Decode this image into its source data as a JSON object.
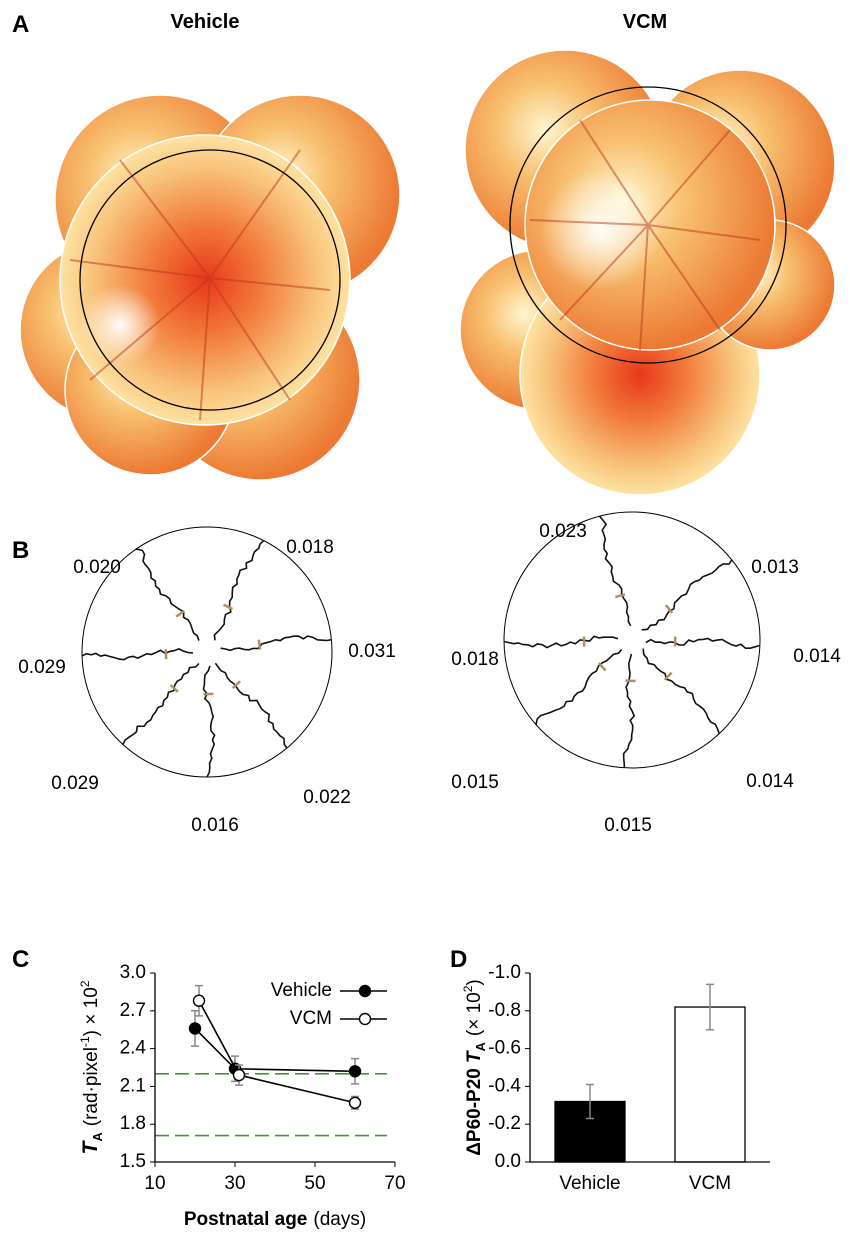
{
  "figure": {
    "panel_a": {
      "label": "A",
      "groups": [
        "Vehicle",
        "VCM"
      ]
    },
    "panel_b": {
      "label": "B",
      "groups": [
        {
          "labels": [
            "0.020",
            "0.018",
            "0.031",
            "0.022",
            "0.016",
            "0.029",
            "0.029"
          ]
        },
        {
          "labels": [
            "0.023",
            "0.013",
            "0.014",
            "0.014",
            "0.015",
            "0.015",
            "0.018"
          ]
        }
      ]
    }
  },
  "chart_data": [
    {
      "type": "line",
      "label": "C",
      "xlabel": {
        "bold": "Postnatal age",
        "normal": "(days)"
      },
      "ylabel": {
        "symbol": "T",
        "subscript": "A",
        "unit": "(rad·pixel",
        "exponent": "-1",
        "suffix": ") × 10",
        "suffix_exponent": "2"
      },
      "xlim": [
        10,
        70
      ],
      "xticks": [
        10,
        30,
        50,
        70
      ],
      "ylim": [
        1.5,
        3.0
      ],
      "yticks": [
        1.5,
        1.8,
        2.1,
        2.4,
        2.7,
        {
          "value": 3.0,
          "label": "3.0"
        }
      ],
      "legend": "upper right",
      "series": [
        {
          "name": "Vehicle",
          "color": "#000000",
          "marker_fill": "#000000",
          "x": [
            20,
            30,
            60
          ],
          "values": [
            2.56,
            2.24,
            2.22
          ],
          "errors": [
            0.14,
            0.1,
            0.1
          ]
        },
        {
          "name": "VCM",
          "color": "#000000",
          "marker_fill": "#ffffff",
          "x": [
            21,
            31,
            60
          ],
          "values": [
            2.78,
            2.19,
            1.97
          ],
          "errors": [
            0.12,
            0.08,
            0.05
          ]
        }
      ],
      "reference_lines": [
        {
          "value": 2.2,
          "color": "#3a9a2a"
        },
        {
          "value": 1.71,
          "color": "#3a9a2a"
        }
      ]
    },
    {
      "type": "bar",
      "label": "D",
      "ylabel": {
        "prefix": "ΔP60-P20",
        "symbol": "T",
        "subscript": "A",
        "unit": "(× 10",
        "exponent": "2",
        "close": ")"
      },
      "categories": [
        "Vehicle",
        "VCM"
      ],
      "values": [
        -0.32,
        -0.82
      ],
      "errors": [
        0.09,
        0.12
      ],
      "colors": [
        "#000000",
        "#ffffff"
      ],
      "ylim": [
        0,
        -1.0
      ],
      "yticks": [
        {
          "value": 0,
          "label": "0.0"
        },
        -0.2,
        -0.4,
        -0.6,
        -0.8,
        {
          "value": -1.0,
          "label": "-1.0"
        }
      ]
    }
  ]
}
